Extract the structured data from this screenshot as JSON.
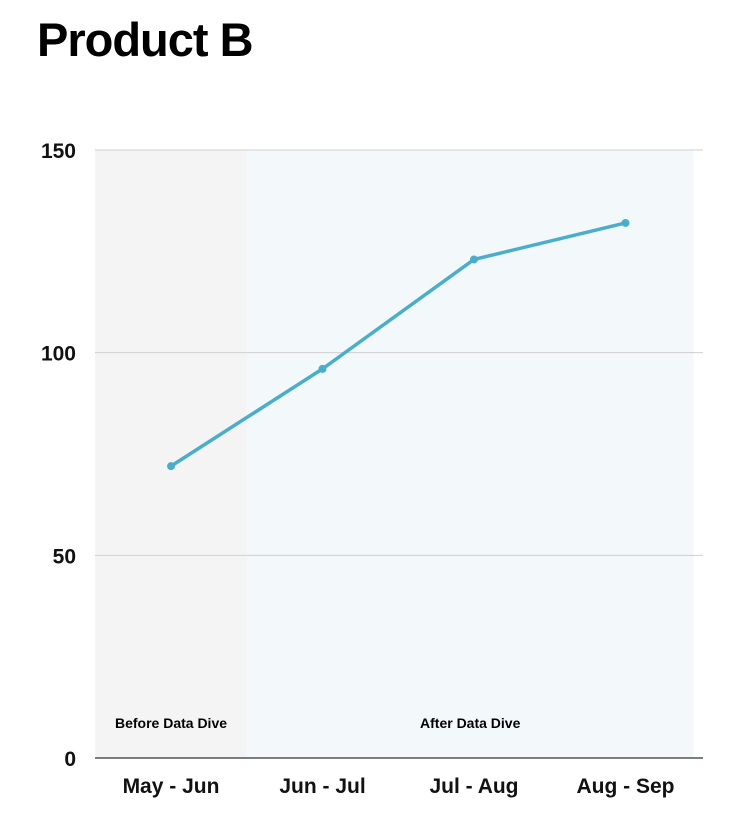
{
  "chart_data": {
    "type": "line",
    "title": "Product B",
    "categories": [
      "May - Jun",
      "Jun - Jul",
      "Jul - Aug",
      "Aug - Sep"
    ],
    "series": [
      {
        "values": [
          72,
          96,
          123,
          132
        ],
        "color": "#4badc9"
      }
    ],
    "ylim": [
      0,
      150
    ],
    "yticks": [
      0,
      50,
      100,
      150
    ],
    "xlabel": "",
    "ylabel": "",
    "grid": true,
    "regions": [
      {
        "label": "Before Data Dive",
        "from": -0.5,
        "to": 0.5,
        "color": "#f4f4f4"
      },
      {
        "label": "After Data Dive",
        "from": 0.5,
        "to": 3.45,
        "color": "#f3f9fb"
      }
    ]
  }
}
